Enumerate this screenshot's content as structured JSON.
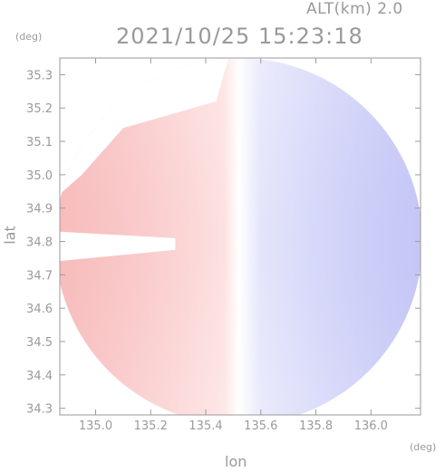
{
  "header": {
    "altitude_label": "ALT(km) 2.0",
    "timestamp": "2021/10/25 15:23:18"
  },
  "chart_data": {
    "type": "heatmap",
    "title": "2021/10/25 15:23:18",
    "subtitle": "ALT(km) 2.0",
    "xlabel": "lon",
    "ylabel": "lat",
    "x_unit_label": "(deg)",
    "y_unit_label": "(deg)",
    "xlim": [
      134.87,
      136.18
    ],
    "ylim": [
      34.28,
      35.35
    ],
    "x_ticks": [
      135.0,
      135.2,
      135.4,
      135.6,
      135.8,
      136.0
    ],
    "x_tick_labels": [
      "135.0",
      "135.2",
      "135.4",
      "135.6",
      "135.8",
      "136.0"
    ],
    "y_ticks": [
      34.3,
      34.4,
      34.5,
      34.6,
      34.7,
      34.8,
      34.9,
      35.0,
      35.1,
      35.2,
      35.3
    ],
    "y_tick_labels": [
      "34.3",
      "34.4",
      "34.5",
      "34.6",
      "34.7",
      "34.8",
      "34.9",
      "35.0",
      "35.1",
      "35.2",
      "35.3"
    ],
    "radar_center": {
      "lon": 135.52,
      "lat": 34.8
    },
    "radar_range_deg_lat": 0.55,
    "grid": false,
    "colors": {
      "approaching_blue": "#b3b5f5",
      "receding_red": "#f5b0b0",
      "zero_white": "#ffffff",
      "axis": "#9a9a9a"
    }
  }
}
